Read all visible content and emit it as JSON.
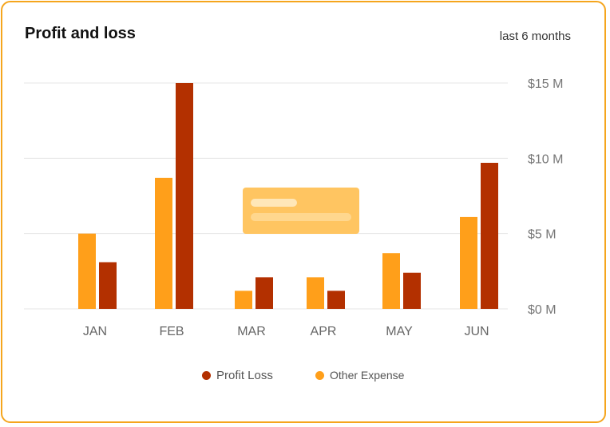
{
  "header": {
    "title": "Profit and loss",
    "range_label": "last 6 months"
  },
  "colors": {
    "profit_loss": "#b33000",
    "other_expense": "#ff9f1a",
    "grid": "#e6e6e6",
    "tooltip": "#ffc561",
    "border": "#f5a51d"
  },
  "legend": {
    "profit_loss": "Profit Loss",
    "other_expense": "Other Expense"
  },
  "chart_data": {
    "type": "bar",
    "categories": [
      "JAN",
      "FEB",
      "MAR",
      "APR",
      "MAY",
      "JUN"
    ],
    "series": [
      {
        "name": "Other Expense",
        "values": [
          5.0,
          8.7,
          1.2,
          2.1,
          3.7,
          6.1
        ]
      },
      {
        "name": "Profit Loss",
        "values": [
          3.1,
          15.0,
          2.1,
          1.2,
          2.4,
          9.7
        ]
      }
    ],
    "y_ticks": [
      "$0 M",
      "$5 M",
      "$10 M",
      "$15 M"
    ],
    "ylim": [
      0,
      15
    ],
    "grid": true,
    "legend_position": "bottom"
  }
}
